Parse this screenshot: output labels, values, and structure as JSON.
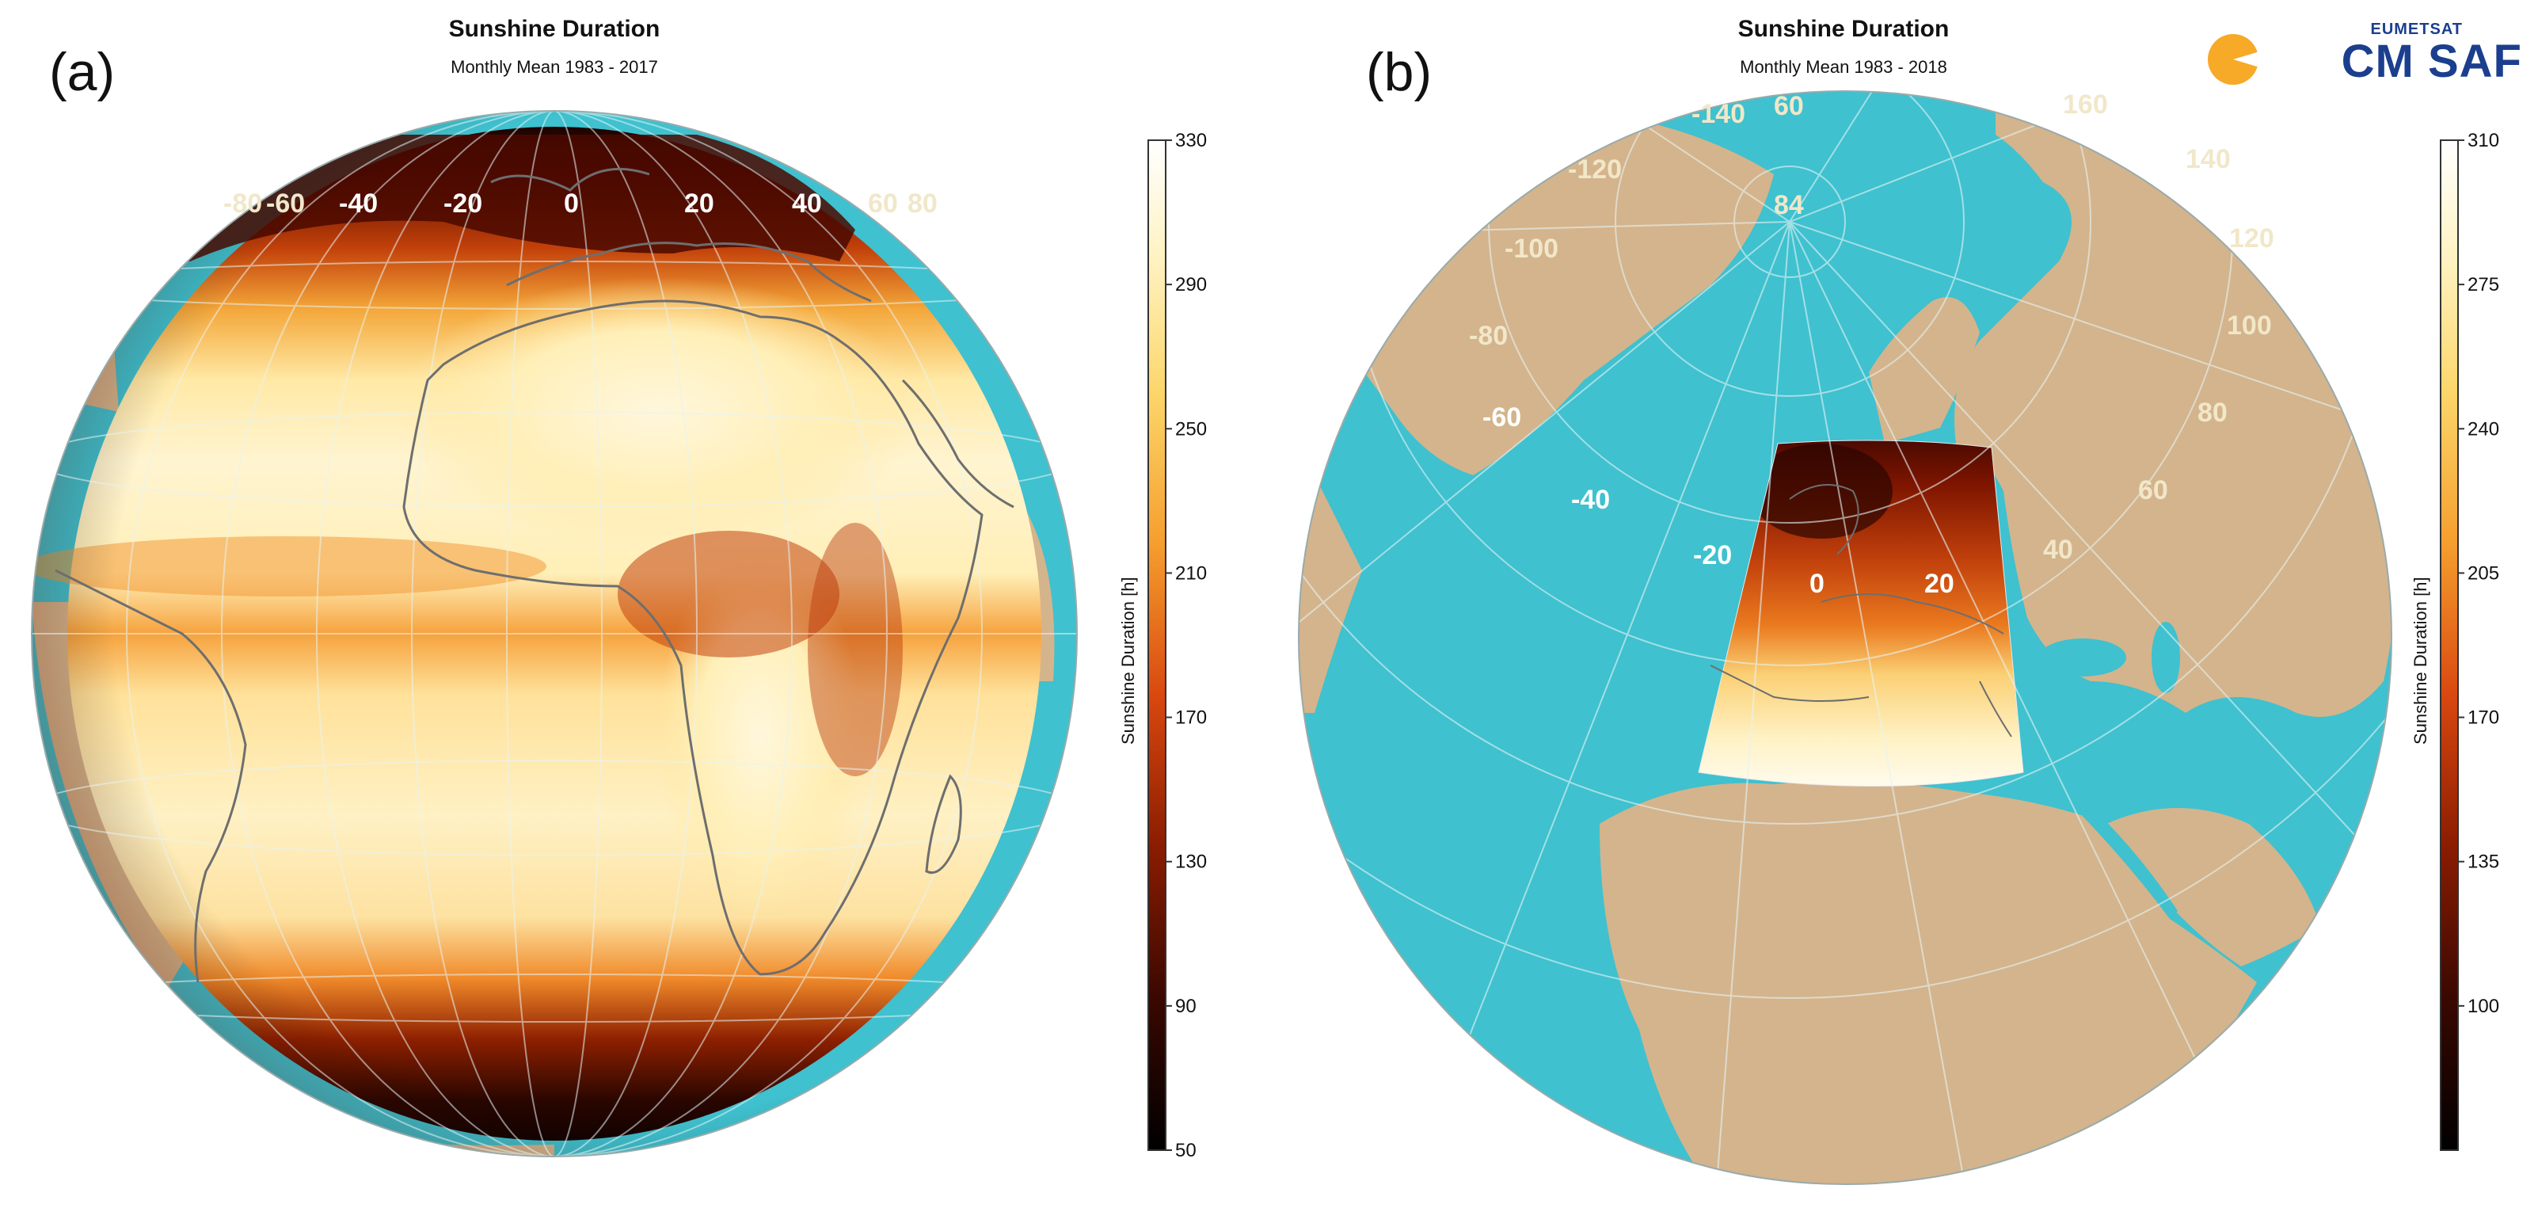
{
  "panels": [
    {
      "letter": "(a)",
      "title": "Sunshine Duration",
      "subtitle": "Monthly Mean 1983 - 2017",
      "longitude_labels": [
        "-80",
        "-60",
        "-40",
        "-20",
        "0",
        "20",
        "40",
        "60",
        "80"
      ],
      "colorbar": {
        "label": "Sunshine Duration [h]",
        "ticks": [
          "50",
          "90",
          "130",
          "170",
          "210",
          "250",
          "290",
          "330"
        ],
        "min": 50,
        "max": 330
      }
    },
    {
      "letter": "(b)",
      "title": "Sunshine Duration",
      "subtitle": "Monthly Mean 1983 - 2018",
      "longitude_labels": [
        "-140",
        "-120",
        "-100",
        "-80",
        "-60",
        "-40",
        "-20",
        "0",
        "20",
        "40",
        "60",
        "80",
        "100",
        "120",
        "140",
        "160"
      ],
      "latitude_label": "84",
      "extra_label": "60",
      "colorbar": {
        "label": "Sunshine Duration [h]",
        "ticks": [
          "100",
          "135",
          "170",
          "205",
          "240",
          "275",
          "310"
        ],
        "min": 65,
        "max": 310
      }
    }
  ],
  "logo": {
    "top": "EUMETSAT",
    "main": "CM SAF"
  },
  "colors": {
    "ocean": "#3fc1cf",
    "land": "#d4b48c",
    "coast": "#6e6e6e",
    "grid": "#e6f4f5"
  }
}
